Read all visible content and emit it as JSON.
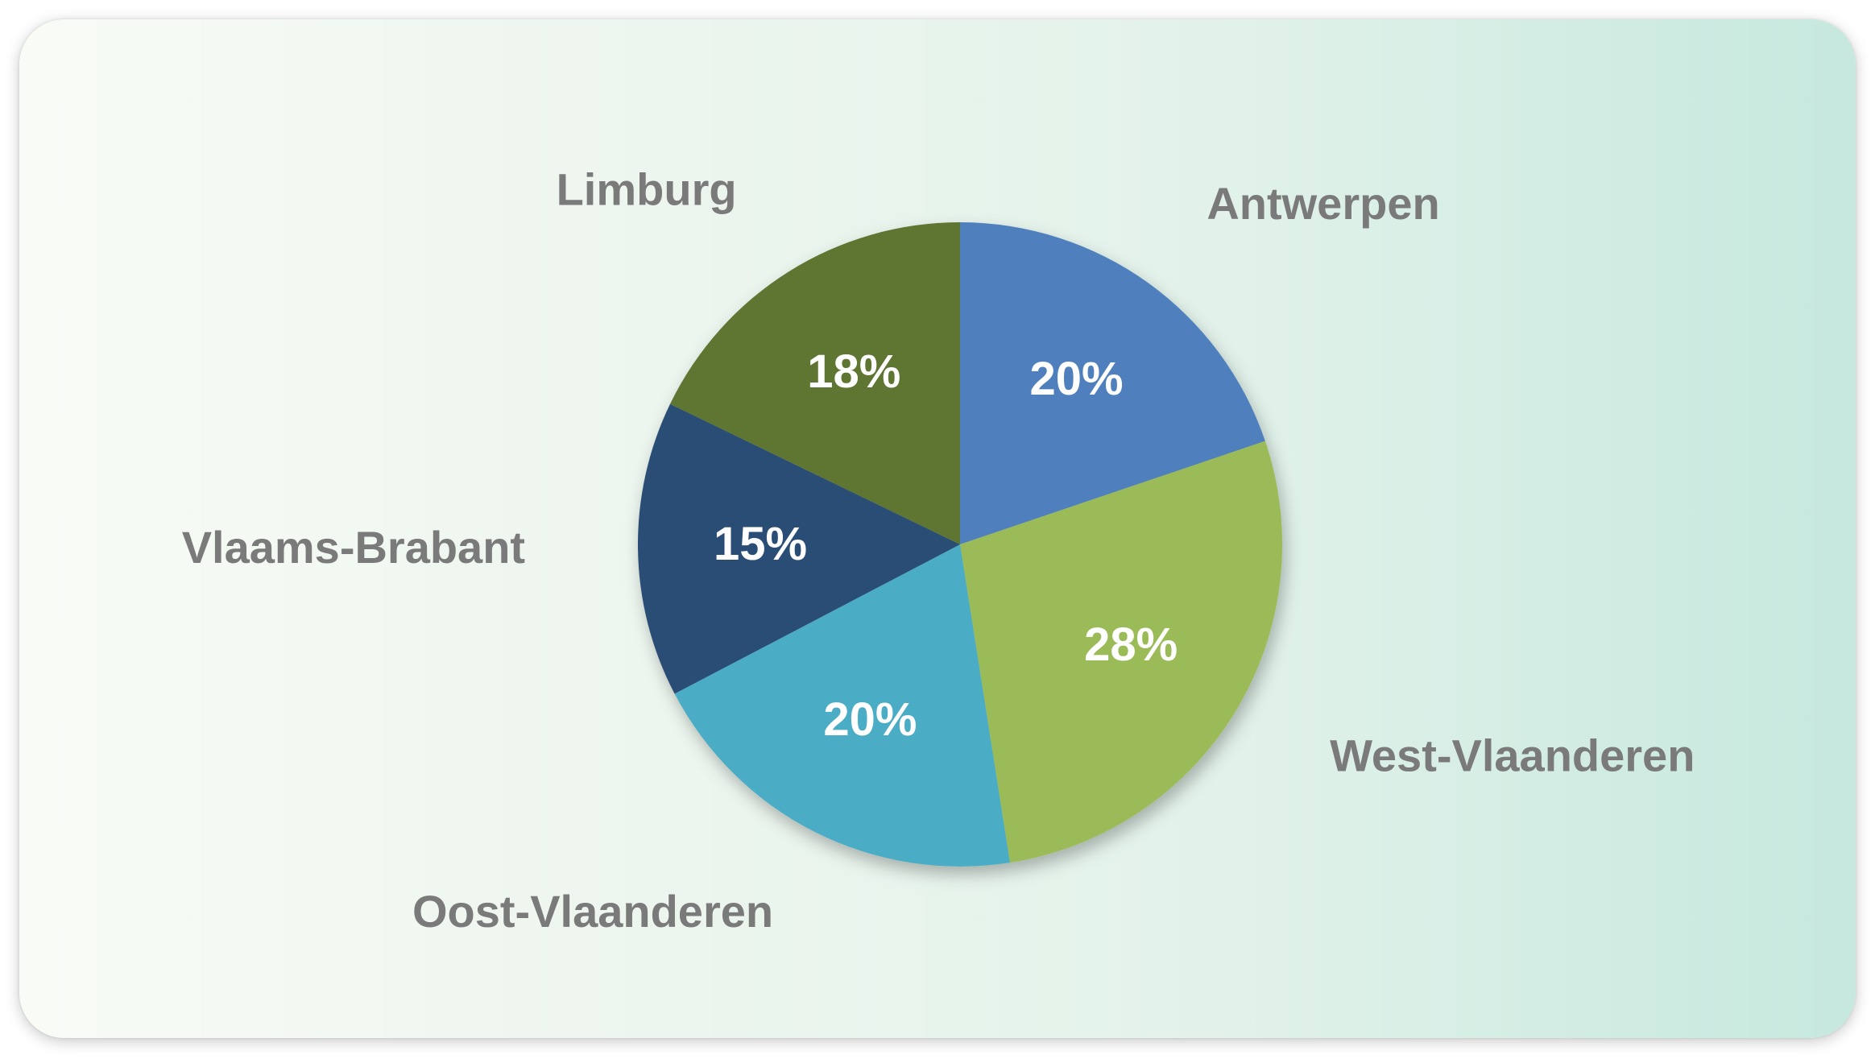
{
  "chart_data": {
    "type": "pie",
    "categories": [
      "Antwerpen",
      "West-Vlaanderen",
      "Oost-Vlaanderen",
      "Vlaams-Brabant",
      "Limburg"
    ],
    "values": [
      20,
      28,
      20,
      15,
      18
    ],
    "value_labels": [
      "20%",
      "28%",
      "20%",
      "15%",
      "18%"
    ],
    "colors": [
      "#4f80bd",
      "#9bbb59",
      "#4bacc6",
      "#2c4d75",
      "#5f7530"
    ],
    "start": "12 o'clock, clockwise",
    "legend": "none (category labels placed outside each slice)"
  }
}
